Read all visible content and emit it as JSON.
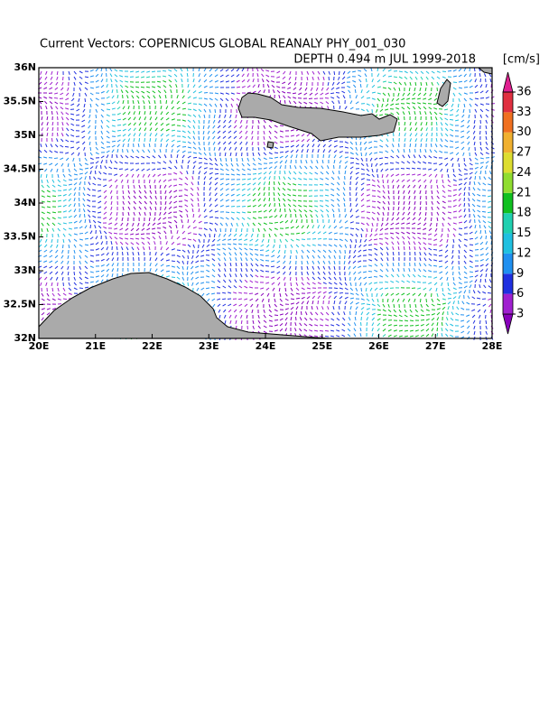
{
  "chart_data": {
    "type": "vector_map",
    "title": "Current Vectors: COPERNICUS GLOBAL REANALY PHY_001_030",
    "subtitle": "DEPTH 0.494 m  JUL 1999-2018",
    "units": "[cm/s]",
    "xlim": [
      20,
      28
    ],
    "ylim": [
      32,
      36
    ],
    "xticks": [
      {
        "value": 20,
        "label": "20E"
      },
      {
        "value": 21,
        "label": "21E"
      },
      {
        "value": 22,
        "label": "22E"
      },
      {
        "value": 23,
        "label": "23E"
      },
      {
        "value": 24,
        "label": "24E"
      },
      {
        "value": 25,
        "label": "25E"
      },
      {
        "value": 26,
        "label": "26E"
      },
      {
        "value": 27,
        "label": "27E"
      },
      {
        "value": 28,
        "label": "28E"
      }
    ],
    "yticks": [
      {
        "value": 32,
        "label": "32N"
      },
      {
        "value": 32.5,
        "label": "32.5N"
      },
      {
        "value": 33,
        "label": "33N"
      },
      {
        "value": 33.5,
        "label": "33.5N"
      },
      {
        "value": 34,
        "label": "34N"
      },
      {
        "value": 34.5,
        "label": "34.5N"
      },
      {
        "value": 35,
        "label": "35N"
      },
      {
        "value": 35.5,
        "label": "35.5N"
      },
      {
        "value": 36,
        "label": "36N"
      }
    ],
    "colorbar": {
      "lim": [
        3,
        36
      ],
      "ticks": [
        3,
        6,
        9,
        12,
        15,
        18,
        21,
        24,
        27,
        30,
        33,
        36
      ],
      "colors": [
        "#8800bb",
        "#a020d0",
        "#2030e0",
        "#2090f0",
        "#20c0e0",
        "#20d0b0",
        "#10c020",
        "#90dd30",
        "#dddd30",
        "#f0b030",
        "#f07020",
        "#e03040",
        "#e02090"
      ]
    }
  }
}
